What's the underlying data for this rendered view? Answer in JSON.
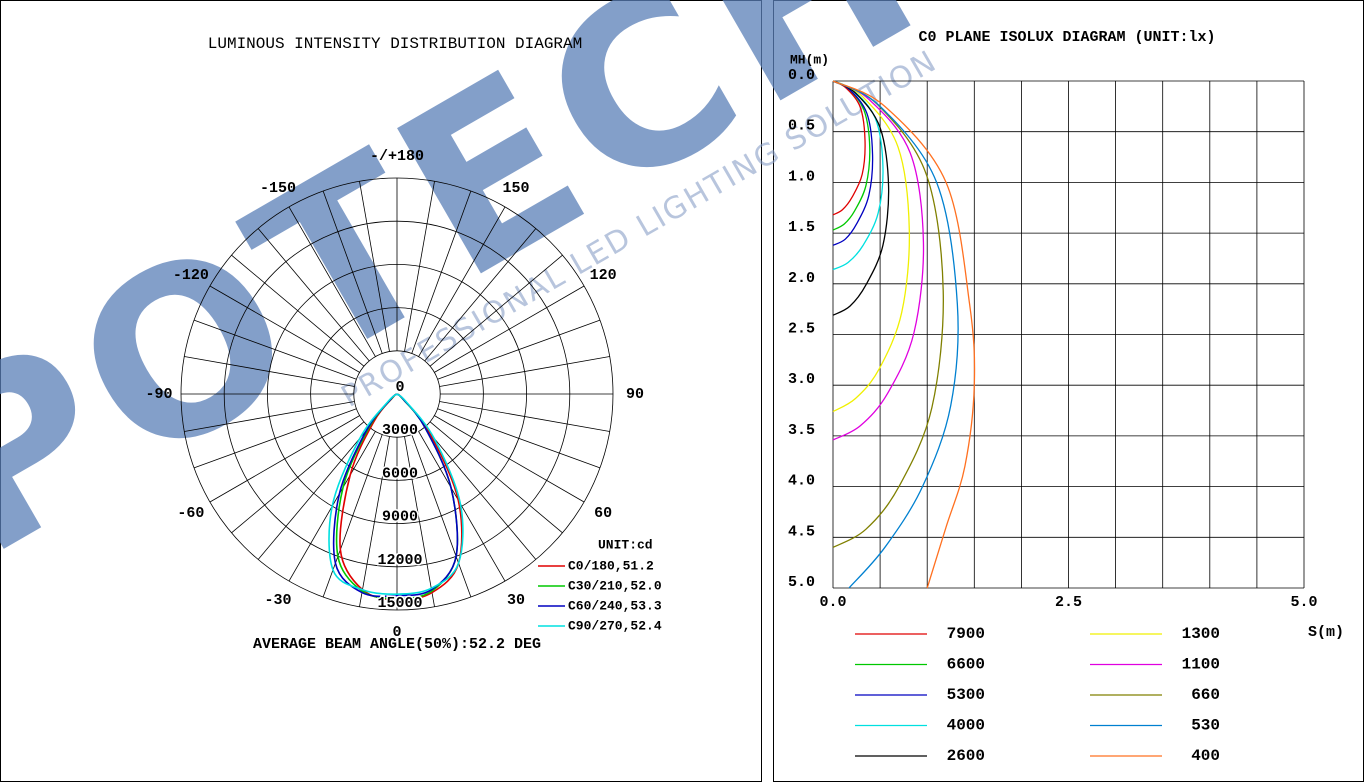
{
  "watermark": {
    "logo": "POTECH",
    "tagline": "PROFESSIONAL LED LIGHTING SOLUTION"
  },
  "chart_data": [
    {
      "type": "polar",
      "title": "LUMINOUS INTENSITY DISTRIBUTION DIAGRAM",
      "unit_label": "UNIT:cd",
      "footer": "AVERAGE BEAM ANGLE(50%):52.2 DEG",
      "rlim": [
        0,
        15000
      ],
      "rticks": [
        0,
        3000,
        6000,
        9000,
        12000,
        15000
      ],
      "angle_ticks": [
        {
          "value": 180,
          "label": "-/+180"
        },
        -150,
        -120,
        -90,
        -60,
        -30,
        0,
        30,
        60,
        90,
        120,
        150
      ],
      "angle_grid_step": 10,
      "theta": [
        -60,
        -50,
        -40,
        -30,
        -20,
        -10,
        0,
        10,
        20,
        30,
        40,
        50,
        60
      ],
      "series": [
        {
          "name": "C0/180,51.2",
          "color": "#e00000",
          "values": [
            0,
            400,
            2500,
            6500,
            11500,
            13800,
            14300,
            14000,
            12500,
            8500,
            3500,
            600,
            0
          ]
        },
        {
          "name": "C30/210,52.0",
          "color": "#00c800",
          "values": [
            0,
            500,
            3000,
            7500,
            12000,
            13900,
            14200,
            13900,
            12000,
            7500,
            3000,
            500,
            0
          ]
        },
        {
          "name": "C60/240,53.3",
          "color": "#0000c0",
          "values": [
            0,
            600,
            3300,
            8000,
            12500,
            14000,
            14000,
            13800,
            12000,
            7500,
            3000,
            600,
            0
          ]
        },
        {
          "name": "C90/270,52.4",
          "color": "#00e0e0",
          "values": [
            0,
            800,
            4000,
            9000,
            13000,
            13800,
            13900,
            13700,
            12500,
            8800,
            4000,
            800,
            0
          ]
        }
      ]
    },
    {
      "type": "isolux",
      "title": "C0 PLANE ISOLUX DIAGRAM (UNIT:lx)",
      "xlabel": "S(m)",
      "ylabel": "MH(m)",
      "xlim": [
        0,
        5
      ],
      "ylim": [
        0,
        5
      ],
      "y_inverted": true,
      "xticks": [
        {
          "value": 0,
          "label": "0.0"
        },
        2.5,
        {
          "value": 5,
          "label": "5.0"
        }
      ],
      "xgrid": [
        0,
        0.5,
        1,
        1.5,
        2,
        2.5,
        3,
        3.5,
        4,
        4.5,
        5
      ],
      "yticks": [
        {
          "value": 0,
          "label": "0.0"
        },
        0.5,
        {
          "value": 1,
          "label": "1.0"
        },
        1.5,
        {
          "value": 2,
          "label": "2.0"
        },
        2.5,
        {
          "value": 3,
          "label": "3.0"
        },
        3.5,
        {
          "value": 4,
          "label": "4.0"
        },
        4.5,
        {
          "value": 5,
          "label": "5.0"
        }
      ],
      "series": [
        {
          "name": "7900",
          "color": "#e00000",
          "x": [
            0,
            0.14,
            0.29,
            0.34,
            0.31,
            0.2,
            0.1,
            0
          ],
          "y": [
            0,
            0.07,
            0.26,
            0.59,
            0.92,
            1.15,
            1.27,
            1.32
          ]
        },
        {
          "name": "6600",
          "color": "#00c800",
          "x": [
            0,
            0.16,
            0.33,
            0.39,
            0.35,
            0.23,
            0.12,
            0
          ],
          "y": [
            0,
            0.07,
            0.29,
            0.66,
            1.03,
            1.28,
            1.41,
            1.47
          ]
        },
        {
          "name": "5300",
          "color": "#0000c0",
          "x": [
            0,
            0.17,
            0.36,
            0.42,
            0.38,
            0.25,
            0.13,
            0
          ],
          "y": [
            0,
            0.08,
            0.32,
            0.73,
            1.13,
            1.41,
            1.56,
            1.62
          ]
        },
        {
          "name": "4000",
          "color": "#00e0e0",
          "x": [
            0,
            0.21,
            0.45,
            0.53,
            0.48,
            0.32,
            0.16,
            0
          ],
          "y": [
            0,
            0.09,
            0.37,
            0.84,
            1.3,
            1.62,
            1.79,
            1.86
          ]
        },
        {
          "name": "2600",
          "color": "#000000",
          "x": [
            0,
            0.24,
            0.5,
            0.59,
            0.53,
            0.35,
            0.18,
            0
          ],
          "y": [
            0,
            0.12,
            0.46,
            1.04,
            1.62,
            2.01,
            2.22,
            2.31
          ]
        },
        {
          "name": "1300",
          "color": "#f0f000",
          "x": [
            0,
            0.32,
            0.69,
            0.81,
            0.73,
            0.49,
            0.24,
            0
          ],
          "y": [
            0,
            0.16,
            0.65,
            1.47,
            2.28,
            2.84,
            3.13,
            3.26
          ]
        },
        {
          "name": "1100",
          "color": "#e000e0",
          "x": [
            0,
            0.38,
            0.82,
            0.96,
            0.86,
            0.58,
            0.29,
            0
          ],
          "y": [
            0,
            0.18,
            0.71,
            1.59,
            2.48,
            3.08,
            3.4,
            3.54
          ]
        },
        {
          "name": "660",
          "color": "#808000",
          "x": [
            0,
            0.47,
            0.99,
            1.17,
            1.05,
            0.7,
            0.35,
            0
          ],
          "y": [
            0,
            0.23,
            0.92,
            2.07,
            3.22,
            4.0,
            4.42,
            4.6
          ]
        },
        {
          "name": "530",
          "color": "#0080d0",
          "x": [
            0,
            0.5,
            1.1,
            1.32,
            1.25,
            0.95,
            0.55,
            0.17
          ],
          "y": [
            0,
            0.25,
            1.0,
            2.2,
            3.2,
            4.0,
            4.6,
            5.0
          ]
        },
        {
          "name": "400",
          "color": "#ff7020",
          "x": [
            0,
            0.55,
            1.2,
            1.45,
            1.5,
            1.4,
            1.2,
            1.0
          ],
          "y": [
            0,
            0.25,
            1.0,
            2.2,
            3.0,
            3.8,
            4.4,
            5.0
          ]
        }
      ]
    }
  ]
}
